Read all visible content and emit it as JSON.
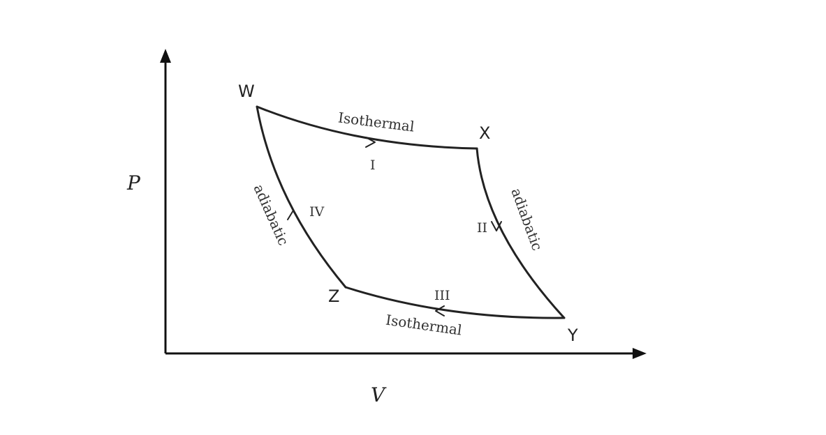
{
  "axes": {
    "y_label": "P",
    "x_label": "V"
  },
  "vertices": {
    "w": "W",
    "x": "X",
    "y": "Y",
    "z": "Z"
  },
  "processes": {
    "top": {
      "name": "Isothermal",
      "step": "I"
    },
    "right": {
      "name": "adiabatic",
      "step": "II"
    },
    "bottom": {
      "name": "Isothermal",
      "step": "III"
    },
    "left": {
      "name": "adiabatic",
      "step": "IV"
    }
  },
  "colors": {
    "line": "#222222",
    "text": "#333333"
  }
}
